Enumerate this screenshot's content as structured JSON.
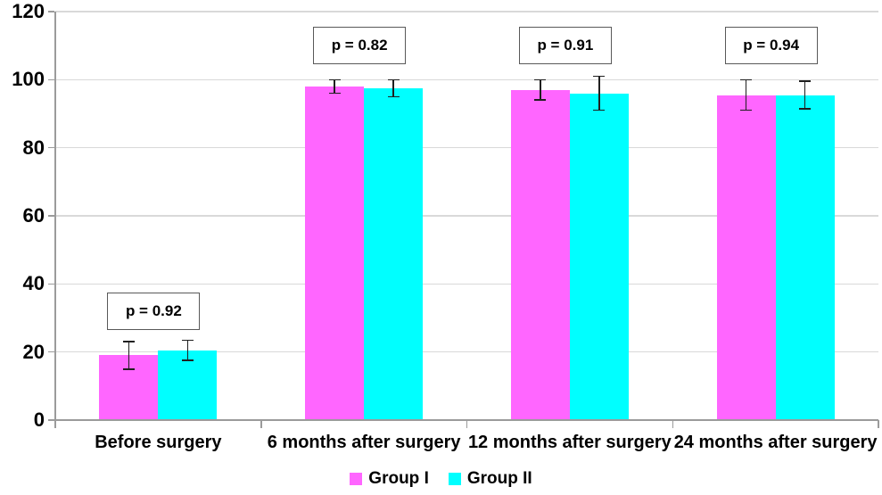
{
  "chart_data": {
    "type": "bar",
    "categories": [
      "Before surgery",
      "6 months after surgery",
      "12 months after surgery",
      "24 months after surgery"
    ],
    "series": [
      {
        "name": "Group I",
        "color": "#FF66FF",
        "values": [
          19,
          98,
          97,
          95.5
        ],
        "errors": [
          4,
          2,
          3,
          4.5
        ]
      },
      {
        "name": "Group II",
        "color": "#00FFFF",
        "values": [
          20.5,
          97.5,
          96,
          95.5
        ],
        "errors": [
          3,
          2.5,
          5,
          4
        ]
      }
    ],
    "annotations": [
      {
        "group_index": 0,
        "label": "p = 0.92",
        "anchor_value": 27
      },
      {
        "group_index": 1,
        "label": "p = 0.82",
        "anchor_value": 105
      },
      {
        "group_index": 2,
        "label": "p = 0.91",
        "anchor_value": 105
      },
      {
        "group_index": 3,
        "label": "p = 0.94",
        "anchor_value": 105
      }
    ],
    "title": "",
    "xlabel": "",
    "ylabel": "",
    "ylim": [
      0,
      120
    ],
    "ytick_step": 20,
    "grid": true,
    "legend_position": "bottom"
  },
  "colors": {
    "background": "#FFFFFF",
    "gridline": "#D9D9D9",
    "axis": "#9B9B9B",
    "text": "#000000",
    "error_bar": "#1F1F1F",
    "p_box_border": "#595959",
    "p_box_fill": "#FFFFFF"
  }
}
